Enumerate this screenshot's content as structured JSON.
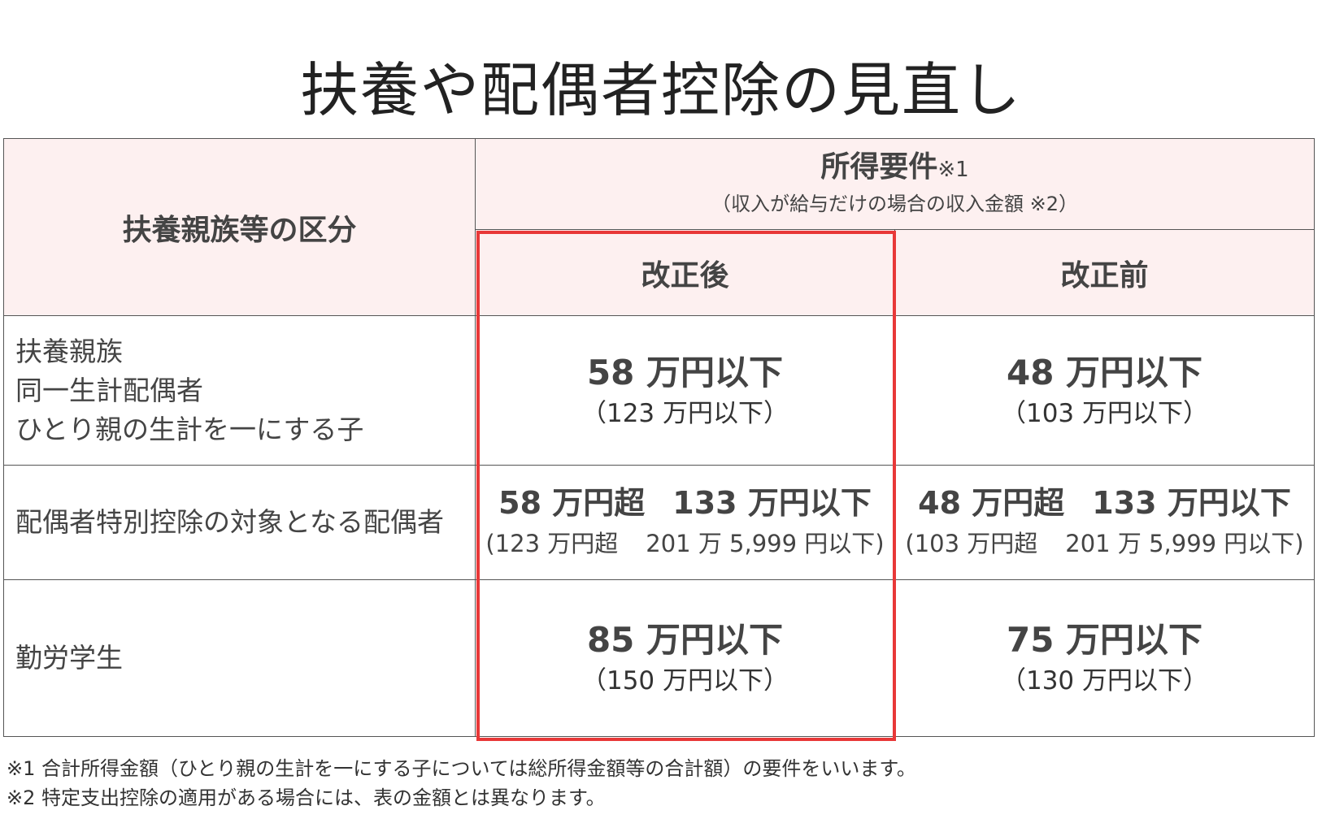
{
  "title": "扶養や配偶者控除の見直し",
  "table": {
    "category_header": "扶養親族等の区分",
    "income_header": "所得要件",
    "income_header_note": "※1",
    "income_subheader": "（収入が給与だけの場合の収入金額 ※2）",
    "after_header": "改正後",
    "before_header": "改正前",
    "rows": [
      {
        "label_lines": [
          "扶養親族",
          "同一生計配偶者",
          "ひとり親の生計を一にする子"
        ],
        "after_main": "58 万円以下",
        "after_sub": "（123 万円以下）",
        "before_main": "48 万円以下",
        "before_sub": "（103 万円以下）"
      },
      {
        "label_lines": [
          "配偶者特別控除の対象となる配偶者"
        ],
        "after_main_a": "58 万円超",
        "after_main_b": "133 万円以下",
        "after_sub_a": "(123 万円超",
        "after_sub_b": "201 万 5,999 円以下)",
        "before_main_a": "48 万円超",
        "before_main_b": "133 万円以下",
        "before_sub_a": "(103 万円超",
        "before_sub_b": "201 万 5,999 円以下)"
      },
      {
        "label_lines": [
          "勤労学生"
        ],
        "after_main": "85 万円以下",
        "after_sub": "（150 万円以下）",
        "before_main": "75 万円以下",
        "before_sub": "（130 万円以下）"
      }
    ]
  },
  "footnotes": [
    "※1 合計所得金額（ひとり親の生計を一にする子については総所得金額等の合計額）の要件をいいます。",
    "※2 特定支出控除の適用がある場合には、表の金額とは異なります。"
  ],
  "colors": {
    "header_bg": "#fdf0f0",
    "highlight_border": "#e83838",
    "border": "#555555"
  }
}
